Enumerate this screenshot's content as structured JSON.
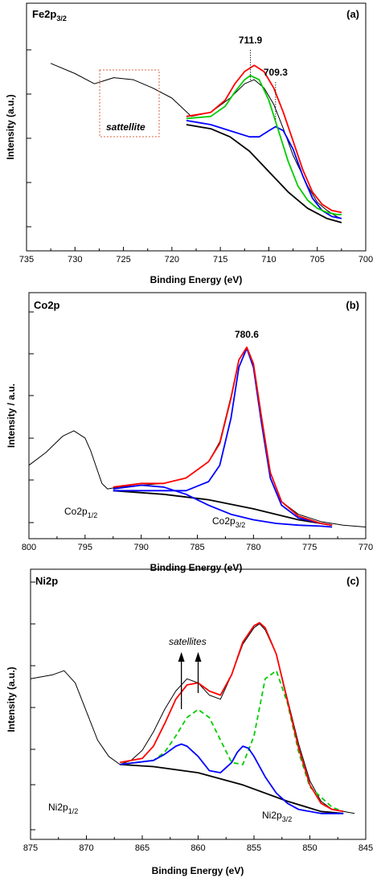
{
  "chart_data": [
    {
      "type": "line",
      "panel_tag": "(a)",
      "element": "Fe2p",
      "element_sub": "3/2",
      "xlabel": "Binding Energy (eV)",
      "ylabel": "Intensity (a.u.)",
      "xlim": [
        735,
        700
      ],
      "xticks": [
        735,
        730,
        725,
        720,
        715,
        710,
        705,
        700
      ],
      "peak_labels": [
        {
          "x": 711.9,
          "text": "711.9"
        },
        {
          "x": 709.3,
          "text": "709.3"
        }
      ],
      "annotations": [
        {
          "text": "sattellite",
          "italic": true
        }
      ],
      "series": [
        {
          "color": "#000000",
          "x": [
            732.5,
            730,
            728,
            726,
            724,
            722,
            720,
            718,
            716,
            714,
            712.5,
            711.5,
            710.5,
            709.5,
            708.5,
            707.5,
            706,
            705,
            704,
            703,
            702.5
          ],
          "y": [
            0.8,
            0.75,
            0.7,
            0.73,
            0.72,
            0.68,
            0.63,
            0.54,
            0.56,
            0.63,
            0.7,
            0.72,
            0.68,
            0.6,
            0.48,
            0.35,
            0.2,
            0.12,
            0.08,
            0.05,
            0.04
          ]
        },
        {
          "color": "#000000",
          "x": [
            718.5,
            716,
            714,
            712,
            710,
            708,
            706,
            704,
            702.5
          ],
          "y": [
            0.5,
            0.48,
            0.44,
            0.37,
            0.27,
            0.17,
            0.09,
            0.04,
            0.02
          ]
        },
        {
          "color": "#0000ff",
          "x": [
            718.5,
            716,
            714,
            712,
            711,
            710,
            709.3,
            708.5,
            707.5,
            706.5,
            705.5,
            704.5,
            703.5,
            702.5
          ],
          "y": [
            0.52,
            0.5,
            0.47,
            0.44,
            0.44,
            0.47,
            0.49,
            0.47,
            0.38,
            0.25,
            0.14,
            0.08,
            0.05,
            0.04
          ]
        },
        {
          "color": "#00cc00",
          "x": [
            718.5,
            716,
            714.5,
            713.5,
            712.5,
            711.9,
            711,
            710,
            709,
            708,
            707,
            706,
            705,
            704,
            703,
            702.5
          ],
          "y": [
            0.53,
            0.54,
            0.59,
            0.66,
            0.72,
            0.74,
            0.72,
            0.62,
            0.47,
            0.32,
            0.2,
            0.13,
            0.09,
            0.07,
            0.06,
            0.06
          ]
        },
        {
          "color": "#ff0000",
          "x": [
            718.5,
            716,
            714.5,
            713.5,
            712.5,
            711.5,
            710.5,
            709.5,
            708.5,
            707.5,
            706.5,
            705.5,
            704.5,
            703.5,
            702.5
          ],
          "y": [
            0.54,
            0.56,
            0.62,
            0.7,
            0.76,
            0.79,
            0.76,
            0.68,
            0.56,
            0.42,
            0.28,
            0.17,
            0.11,
            0.08,
            0.07
          ]
        }
      ]
    },
    {
      "type": "line",
      "panel_tag": "(b)",
      "element": "Co2p",
      "xlabel": "Binding Energy (eV)",
      "ylabel": "Intensity / a.u.",
      "xlim": [
        800,
        770
      ],
      "xticks": [
        800,
        795,
        790,
        785,
        780,
        775,
        770
      ],
      "peak_labels": [
        {
          "x": 780.6,
          "text": "780.6"
        }
      ],
      "component_labels": [
        {
          "text": "Co2p",
          "sub": "1/2"
        },
        {
          "text": "Co2p",
          "sub": "3/2"
        }
      ],
      "series": [
        {
          "color": "#000000",
          "x": [
            800,
            798.5,
            797,
            796,
            795,
            794.5,
            794,
            793.5,
            793,
            792,
            790,
            788,
            786,
            784,
            783,
            782,
            781.3,
            780.6,
            780,
            779.3,
            778.5,
            777.5,
            776,
            774,
            772,
            770
          ],
          "y": [
            0.34,
            0.41,
            0.5,
            0.53,
            0.49,
            0.42,
            0.33,
            0.24,
            0.21,
            0.22,
            0.23,
            0.24,
            0.27,
            0.36,
            0.47,
            0.72,
            0.92,
            0.99,
            0.9,
            0.62,
            0.3,
            0.14,
            0.07,
            0.03,
            0.01,
            0.0
          ]
        },
        {
          "color": "#000000",
          "x": [
            792.5,
            788,
            784,
            780,
            776,
            773
          ],
          "y": [
            0.2,
            0.18,
            0.15,
            0.1,
            0.04,
            0.01
          ]
        },
        {
          "color": "#0000ff",
          "x": [
            792.5,
            790,
            788,
            786,
            784,
            782,
            780,
            778,
            776,
            774,
            773
          ],
          "y": [
            0.21,
            0.23,
            0.22,
            0.18,
            0.12,
            0.07,
            0.04,
            0.02,
            0.01,
            0.005,
            0.0
          ]
        },
        {
          "color": "#0000ff",
          "x": [
            792.5,
            786,
            784,
            783,
            782,
            781.3,
            780.6,
            780,
            779.3,
            778.5,
            777.5,
            776,
            774,
            773
          ],
          "y": [
            0.2,
            0.2,
            0.25,
            0.34,
            0.6,
            0.88,
            0.985,
            0.88,
            0.58,
            0.27,
            0.12,
            0.05,
            0.02,
            0.01
          ]
        },
        {
          "color": "#ff0000",
          "x": [
            792.5,
            790,
            788,
            786,
            784,
            783,
            782,
            781.3,
            780.6,
            780,
            779.3,
            778.5,
            777.5,
            776,
            774,
            773
          ],
          "y": [
            0.22,
            0.24,
            0.24,
            0.27,
            0.36,
            0.46,
            0.71,
            0.92,
            0.99,
            0.9,
            0.61,
            0.3,
            0.14,
            0.06,
            0.02,
            0.01
          ]
        }
      ]
    },
    {
      "type": "line",
      "panel_tag": "(c)",
      "element": "Ni2p",
      "xlabel": "Binding Energy (eV)",
      "ylabel": "Intensity (a.u.)",
      "xlim": [
        875,
        845
      ],
      "xticks": [
        875,
        870,
        865,
        860,
        855,
        850,
        845
      ],
      "annotations": [
        {
          "text": "satellites",
          "italic": true
        }
      ],
      "arrows_x": [
        861.5,
        860
      ],
      "component_labels": [
        {
          "text": "Ni2p",
          "sub": "1/2"
        },
        {
          "text": "Ni2p",
          "sub": "3/2"
        }
      ],
      "series": [
        {
          "color": "#000000",
          "x": [
            875,
            873,
            872,
            871,
            870,
            869,
            868,
            867,
            866,
            865,
            864,
            863,
            862,
            861,
            860,
            859,
            858,
            857,
            856,
            855,
            854.5,
            854,
            853,
            852,
            851,
            850,
            849,
            848,
            847,
            846
          ],
          "y": [
            0.68,
            0.7,
            0.72,
            0.66,
            0.52,
            0.38,
            0.3,
            0.26,
            0.28,
            0.33,
            0.42,
            0.53,
            0.62,
            0.68,
            0.66,
            0.6,
            0.58,
            0.7,
            0.85,
            0.93,
            0.95,
            0.92,
            0.8,
            0.58,
            0.36,
            0.18,
            0.08,
            0.04,
            0.03,
            0.02
          ]
        },
        {
          "color": "#000000",
          "x": [
            867,
            864,
            860,
            856,
            852,
            849,
            847
          ],
          "y": [
            0.26,
            0.25,
            0.22,
            0.16,
            0.08,
            0.03,
            0.02
          ]
        },
        {
          "color": "#00cc00",
          "dashed": true,
          "x": [
            867,
            864,
            863,
            862,
            861,
            860,
            859,
            858,
            857,
            856,
            855,
            854,
            853,
            852,
            851,
            850,
            848,
            847
          ],
          "y": [
            0.26,
            0.28,
            0.32,
            0.4,
            0.49,
            0.53,
            0.49,
            0.38,
            0.27,
            0.26,
            0.4,
            0.68,
            0.72,
            0.56,
            0.32,
            0.15,
            0.05,
            0.03
          ]
        },
        {
          "color": "#0000ff",
          "x": [
            867,
            864,
            863,
            862,
            861.5,
            861,
            860,
            859,
            858,
            857,
            856.5,
            856,
            855.5,
            855,
            854,
            853,
            852,
            851,
            849,
            847
          ],
          "y": [
            0.26,
            0.28,
            0.31,
            0.35,
            0.36,
            0.35,
            0.3,
            0.23,
            0.22,
            0.27,
            0.32,
            0.35,
            0.34,
            0.3,
            0.2,
            0.12,
            0.07,
            0.04,
            0.02,
            0.02
          ]
        },
        {
          "color": "#ff0000",
          "x": [
            867,
            865,
            864,
            863,
            862,
            861,
            860,
            859,
            858,
            857,
            856,
            855,
            854.5,
            854,
            853,
            852,
            851,
            850,
            849,
            848,
            847
          ],
          "y": [
            0.27,
            0.29,
            0.35,
            0.46,
            0.58,
            0.65,
            0.66,
            0.62,
            0.6,
            0.7,
            0.86,
            0.94,
            0.955,
            0.93,
            0.8,
            0.57,
            0.34,
            0.16,
            0.07,
            0.04,
            0.03
          ]
        }
      ]
    }
  ]
}
